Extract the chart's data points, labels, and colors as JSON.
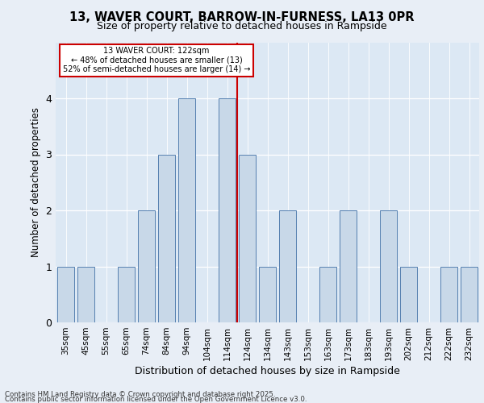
{
  "title_line1": "13, WAVER COURT, BARROW-IN-FURNESS, LA13 0PR",
  "title_line2": "Size of property relative to detached houses in Rampside",
  "xlabel": "Distribution of detached houses by size in Rampside",
  "ylabel": "Number of detached properties",
  "categories": [
    "35sqm",
    "45sqm",
    "55sqm",
    "65sqm",
    "74sqm",
    "84sqm",
    "94sqm",
    "104sqm",
    "114sqm",
    "124sqm",
    "134sqm",
    "143sqm",
    "153sqm",
    "163sqm",
    "173sqm",
    "183sqm",
    "193sqm",
    "202sqm",
    "212sqm",
    "222sqm",
    "232sqm"
  ],
  "values": [
    1,
    1,
    0,
    1,
    2,
    3,
    4,
    0,
    4,
    3,
    1,
    2,
    0,
    1,
    2,
    0,
    2,
    1,
    0,
    1,
    1
  ],
  "bar_color": "#c8d8e8",
  "bar_edge_color": "#5580b0",
  "annotation_line1": "13 WAVER COURT: 122sqm",
  "annotation_line2": "← 48% of detached houses are smaller (13)",
  "annotation_line3": "52% of semi-detached houses are larger (14) →",
  "annotation_box_color": "#ffffff",
  "annotation_box_edge": "#cc0000",
  "vline_color": "#cc0000",
  "vline_index": 8,
  "ylim": [
    0,
    5
  ],
  "yticks": [
    0,
    1,
    2,
    3,
    4
  ],
  "footer_line1": "Contains HM Land Registry data © Crown copyright and database right 2025.",
  "footer_line2": "Contains public sector information licensed under the Open Government Licence v3.0.",
  "bg_color": "#e8eef6",
  "plot_bg_color": "#dce8f4"
}
